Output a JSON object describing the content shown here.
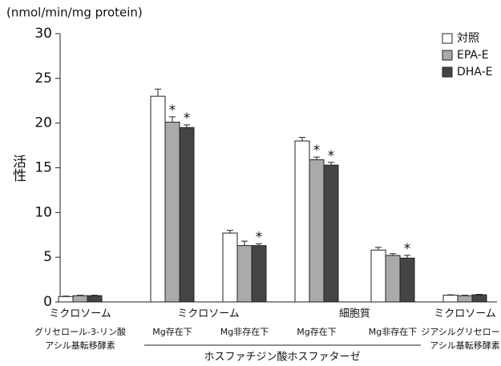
{
  "chart_data": {
    "type": "bar",
    "unit_label": "(nmol/min/mg protein)",
    "y_label": "活性",
    "ylim": [
      0,
      30
    ],
    "yticks": [
      0,
      5,
      10,
      15,
      20,
      25,
      30
    ],
    "categories": [
      [
        "グリセロール-3-リン酸",
        "アシル基転移酵素"
      ],
      [
        "Mg存在下"
      ],
      [
        "Mg非存在下"
      ],
      [
        "Mg存在下"
      ],
      [
        "Mg非存在下"
      ],
      [
        "ジアシルグリセロール",
        "アシル基転移酵素"
      ]
    ],
    "fraction_labels": [
      "ミクロソーム",
      "ミクロソーム",
      "細胞質",
      "ミクロソーム"
    ],
    "enzyme_label": "ホスファチジン酸ホスファターゼ",
    "series": [
      {
        "name": "対照",
        "color": "#ffffff",
        "values": [
          0.6,
          23.0,
          7.7,
          18.0,
          5.8,
          0.75
        ],
        "errors": [
          0.05,
          0.8,
          0.3,
          0.4,
          0.3,
          0.05
        ],
        "markers": [
          null,
          null,
          null,
          null,
          null,
          null
        ]
      },
      {
        "name": "EPA-E",
        "color": "#aaaaaa",
        "values": [
          0.7,
          20.1,
          6.3,
          15.9,
          5.2,
          0.7
        ],
        "errors": [
          0.05,
          0.6,
          0.5,
          0.3,
          0.2,
          0.05
        ],
        "markers": [
          null,
          "*",
          null,
          "*",
          null,
          null
        ]
      },
      {
        "name": "DHA-E",
        "color": "#444444",
        "values": [
          0.7,
          19.5,
          6.3,
          15.3,
          4.9,
          0.8
        ],
        "errors": [
          0.05,
          0.3,
          0.2,
          0.3,
          0.3,
          0.05
        ],
        "markers": [
          null,
          "*",
          "*",
          "*",
          "*",
          null
        ]
      }
    ]
  }
}
